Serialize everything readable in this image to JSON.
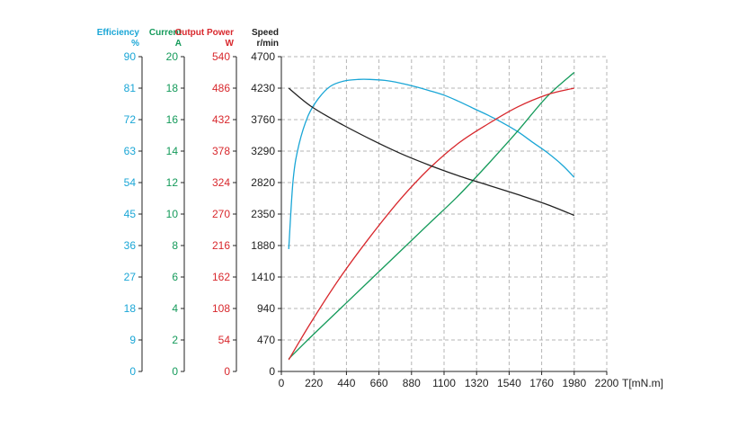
{
  "chart_data": {
    "type": "line",
    "x_axis": {
      "label": "T[mN.m]",
      "ticks": [
        "0",
        "220",
        "440",
        "660",
        "880",
        "1100",
        "1320",
        "1540",
        "1760",
        "1980",
        "2200"
      ],
      "range": [
        0,
        2200
      ]
    },
    "y_axes": [
      {
        "key": "efficiency",
        "name": "Efficiency",
        "unit": "%",
        "color": "#1aa6d6",
        "range": [
          0,
          90
        ],
        "ticks": [
          "0",
          "9",
          "18",
          "27",
          "36",
          "45",
          "54",
          "63",
          "72",
          "81",
          "90"
        ]
      },
      {
        "key": "current",
        "name": "Current",
        "unit": "A",
        "color": "#149a5a",
        "range": [
          0,
          20
        ],
        "ticks": [
          "0",
          "2",
          "4",
          "6",
          "8",
          "10",
          "12",
          "14",
          "16",
          "18",
          "20"
        ]
      },
      {
        "key": "output_power",
        "name": "Output Power",
        "unit": "W",
        "color": "#d8282d",
        "range": [
          0,
          540
        ],
        "ticks": [
          "0",
          "54",
          "108",
          "162",
          "216",
          "270",
          "324",
          "378",
          "432",
          "486",
          "540"
        ]
      },
      {
        "key": "speed",
        "name": "Speed",
        "unit": "r/min",
        "color": "#222222",
        "range": [
          0,
          4700
        ],
        "ticks": [
          "0",
          "470",
          "940",
          "1410",
          "1880",
          "2350",
          "2820",
          "3290",
          "3760",
          "4230",
          "4700"
        ]
      }
    ],
    "series": [
      {
        "axis": "efficiency",
        "color": "#1aa6d6",
        "x": [
          50,
          80,
          120,
          180,
          250,
          330,
          420,
          520,
          600,
          700,
          800,
          900,
          1000,
          1100,
          1200,
          1300,
          1400,
          1500,
          1600,
          1700,
          1800,
          1900,
          1980
        ],
        "y": [
          35,
          55,
          65,
          73,
          78,
          81.5,
          83,
          83.5,
          83.5,
          83.2,
          82.5,
          81.5,
          80.3,
          79,
          77.2,
          75.2,
          73.2,
          71,
          68.5,
          65.5,
          62.5,
          59,
          55.5
        ]
      },
      {
        "axis": "current",
        "color": "#149a5a",
        "x": [
          50,
          200,
          400,
          600,
          800,
          1000,
          1200,
          1400,
          1600,
          1800,
          1980
        ],
        "y": [
          0.8,
          2.2,
          4.0,
          5.8,
          7.6,
          9.4,
          11.2,
          13.2,
          15.3,
          17.5,
          19.0
        ]
      },
      {
        "axis": "output_power",
        "color": "#d8282d",
        "x": [
          50,
          200,
          400,
          600,
          800,
          1000,
          1200,
          1400,
          1600,
          1800,
          1980
        ],
        "y": [
          20,
          84,
          162,
          231,
          294,
          348,
          392,
          425,
          454,
          475,
          486
        ]
      },
      {
        "axis": "speed",
        "color": "#222222",
        "x": [
          50,
          200,
          400,
          600,
          800,
          1000,
          1200,
          1400,
          1600,
          1800,
          1980
        ],
        "y": [
          4230,
          3960,
          3700,
          3470,
          3260,
          3080,
          2920,
          2780,
          2640,
          2490,
          2330
        ]
      }
    ],
    "grid": true,
    "grid_style": "dashed"
  }
}
